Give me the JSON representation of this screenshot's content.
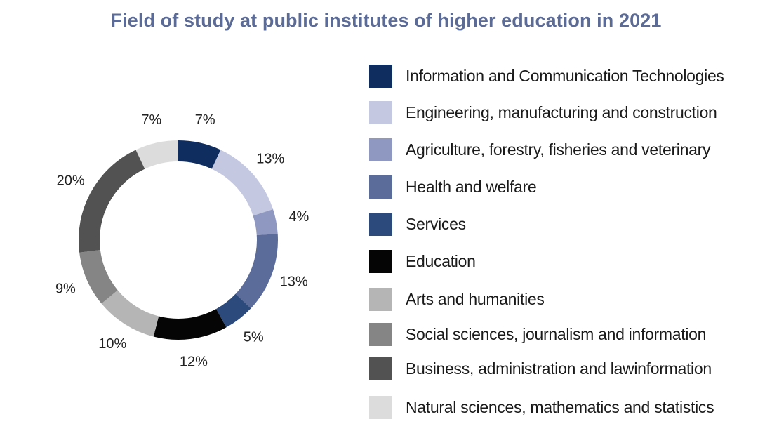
{
  "chart_data": {
    "type": "pie",
    "title": "Field of study at public institutes of higher education in 2021",
    "value_suffix": "%",
    "slices": [
      {
        "name": "Information and Communication Technologies",
        "value": 7,
        "label": "7%",
        "color": "#0f2d5e"
      },
      {
        "name": "Engineering, manufacturing and construction",
        "value": 13,
        "label": "13%",
        "color": "#c4c8e0"
      },
      {
        "name": "Agriculture, forestry, fisheries and veterinary",
        "value": 4,
        "label": "4%",
        "color": "#8f98c0"
      },
      {
        "name": "Health and welfare",
        "value": 13,
        "label": "13%",
        "color": "#5b6b9a"
      },
      {
        "name": "Services",
        "value": 5,
        "label": "5%",
        "color": "#2c4a7c"
      },
      {
        "name": "Education",
        "value": 12,
        "label": "12%",
        "color": "#050505"
      },
      {
        "name": "Arts and humanities",
        "value": 10,
        "label": "10%",
        "color": "#b5b5b5"
      },
      {
        "name": "Social sciences, journalism and information",
        "value": 9,
        "label": "9%",
        "color": "#858585"
      },
      {
        "name": "Business, administration and lawinformation",
        "value": 20,
        "label": "20%",
        "color": "#525252"
      },
      {
        "name": "Natural sciences, mathematics and statistics",
        "value": 7,
        "label": "7%",
        "color": "#dcdcdc"
      }
    ],
    "legend_position": "right"
  }
}
